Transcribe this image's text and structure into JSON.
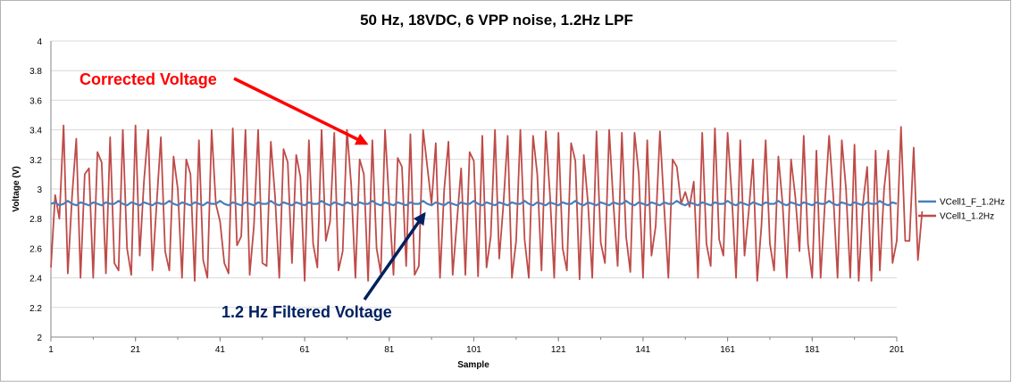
{
  "chart_data": {
    "type": "line",
    "title": "50 Hz, 18VDC, 6 VPP noise, 1.2Hz LPF",
    "xlabel": "Sample",
    "ylabel": "Voltage (V)",
    "xlim": [
      1,
      201
    ],
    "ylim": [
      2,
      4
    ],
    "x_ticks": [
      "1",
      "21",
      "41",
      "61",
      "81",
      "101",
      "121",
      "141",
      "161",
      "181",
      "201"
    ],
    "y_ticks": [
      "2",
      "2.2",
      "2.4",
      "2.6",
      "2.8",
      "3",
      "3.2",
      "3.4",
      "3.6",
      "3.8",
      "4"
    ],
    "grid": true,
    "legend_position": "right",
    "series": [
      {
        "name": "VCell1_F_1.2Hz",
        "color": "#4a7ebb",
        "description_values": "approximately constant around 2.90 V",
        "values": [
          2.9,
          2.91,
          2.89,
          2.9,
          2.92,
          2.9,
          2.89,
          2.91,
          2.9,
          2.89,
          2.91,
          2.9,
          2.89,
          2.91,
          2.9,
          2.9,
          2.92,
          2.9,
          2.89,
          2.91,
          2.9,
          2.89,
          2.91,
          2.9,
          2.89,
          2.91,
          2.9,
          2.9,
          2.92,
          2.9,
          2.89,
          2.91,
          2.9,
          2.89,
          2.91,
          2.9,
          2.89,
          2.91,
          2.9,
          2.9,
          2.92,
          2.9,
          2.89,
          2.91,
          2.9,
          2.89,
          2.91,
          2.9,
          2.89,
          2.91,
          2.9,
          2.9,
          2.92,
          2.9,
          2.89,
          2.91,
          2.9,
          2.89,
          2.91,
          2.9,
          2.89,
          2.91,
          2.9,
          2.9,
          2.92,
          2.9,
          2.89,
          2.91,
          2.9,
          2.89,
          2.91,
          2.9,
          2.89,
          2.91,
          2.9,
          2.9,
          2.92,
          2.9,
          2.89,
          2.91,
          2.9,
          2.89,
          2.91,
          2.9,
          2.89,
          2.91,
          2.9,
          2.9,
          2.92,
          2.9,
          2.89,
          2.91,
          2.9,
          2.89,
          2.91,
          2.9,
          2.89,
          2.91,
          2.9,
          2.9,
          2.92,
          2.9,
          2.89,
          2.91,
          2.9,
          2.89,
          2.91,
          2.9,
          2.89,
          2.91,
          2.9,
          2.9,
          2.92,
          2.9,
          2.89,
          2.91,
          2.9,
          2.89,
          2.91,
          2.9,
          2.89,
          2.91,
          2.9,
          2.9,
          2.92,
          2.9,
          2.89,
          2.91,
          2.9,
          2.89,
          2.91,
          2.9,
          2.89,
          2.91,
          2.9,
          2.9,
          2.92,
          2.9,
          2.89,
          2.91,
          2.9,
          2.89,
          2.91,
          2.9,
          2.89,
          2.91,
          2.9,
          2.9,
          2.92,
          2.9,
          2.89,
          2.91,
          2.9,
          2.89,
          2.91,
          2.9,
          2.89,
          2.91,
          2.9,
          2.9,
          2.92,
          2.9,
          2.89,
          2.91,
          2.9,
          2.89,
          2.91,
          2.9,
          2.89,
          2.91,
          2.9,
          2.9,
          2.92,
          2.9,
          2.89,
          2.91,
          2.9,
          2.89,
          2.91,
          2.9,
          2.89,
          2.91,
          2.9,
          2.9,
          2.92,
          2.9,
          2.89,
          2.91,
          2.9,
          2.89,
          2.91,
          2.9,
          2.89,
          2.91,
          2.9,
          2.9,
          2.92,
          2.9,
          2.89,
          2.91,
          2.9
        ]
      },
      {
        "name": "VCell1_1.2Hz",
        "color": "#be4b48",
        "values": [
          2.47,
          2.96,
          2.8,
          3.43,
          2.43,
          2.95,
          3.34,
          2.4,
          3.1,
          3.14,
          2.4,
          3.25,
          3.18,
          2.43,
          3.35,
          2.5,
          2.45,
          3.4,
          2.6,
          2.42,
          3.43,
          2.55,
          3.05,
          3.4,
          2.45,
          2.9,
          3.35,
          2.58,
          2.45,
          3.22,
          3.0,
          2.4,
          3.2,
          3.1,
          2.38,
          3.33,
          2.52,
          2.4,
          3.4,
          2.9,
          2.78,
          2.5,
          2.43,
          3.41,
          2.62,
          2.68,
          3.4,
          2.42,
          2.75,
          3.4,
          2.5,
          2.48,
          3.32,
          2.95,
          2.4,
          3.27,
          3.18,
          2.5,
          3.23,
          3.08,
          2.38,
          3.33,
          2.63,
          2.47,
          3.4,
          2.65,
          2.78,
          3.38,
          2.45,
          2.58,
          3.4,
          3.03,
          2.4,
          3.2,
          3.1,
          2.38,
          3.33,
          2.6,
          2.43,
          3.4,
          2.9,
          2.42,
          3.21,
          3.15,
          2.48,
          3.37,
          2.42,
          2.48,
          3.4,
          3.15,
          2.9,
          3.31,
          2.4,
          3.0,
          3.32,
          2.42,
          2.78,
          3.14,
          2.42,
          3.25,
          3.19,
          2.41,
          3.36,
          2.47,
          2.68,
          3.4,
          2.53,
          2.9,
          3.36,
          2.4,
          2.65,
          3.4,
          2.66,
          2.4,
          3.36,
          3.1,
          2.45,
          3.39,
          2.96,
          2.4,
          3.38,
          2.6,
          2.45,
          3.31,
          3.19,
          2.39,
          3.23,
          2.9,
          2.4,
          3.39,
          2.64,
          2.5,
          3.4,
          2.9,
          2.48,
          3.38,
          2.68,
          2.44,
          3.38,
          3.1,
          2.4,
          3.33,
          2.55,
          2.75,
          3.39,
          2.88,
          2.4,
          3.2,
          3.15,
          2.9,
          2.98,
          2.88,
          3.05,
          2.4,
          3.38,
          2.63,
          2.48,
          3.41,
          2.66,
          2.55,
          3.38,
          2.95,
          2.4,
          3.33,
          2.55,
          2.85,
          3.2,
          2.38,
          2.75,
          3.33,
          2.63,
          2.45,
          3.22,
          2.9,
          2.4,
          3.2,
          2.95,
          2.58,
          3.36,
          2.63,
          2.4,
          3.26,
          2.4,
          2.9,
          3.36,
          2.95,
          2.4,
          3.33,
          3.0,
          2.4,
          3.3,
          2.38,
          2.9,
          3.15,
          2.38,
          3.26,
          2.45,
          3.0,
          3.26,
          2.5,
          2.65,
          3.42,
          2.65,
          2.65,
          3.28,
          2.52,
          2.85
        ]
      }
    ],
    "annotations": [
      {
        "text": "Corrected Voltage",
        "color": "#ff0000",
        "points_to_series": "VCell1_1.2Hz"
      },
      {
        "text": "1.2 Hz Filtered Voltage",
        "color": "#002060",
        "points_to_series": "VCell1_F_1.2Hz"
      }
    ]
  }
}
